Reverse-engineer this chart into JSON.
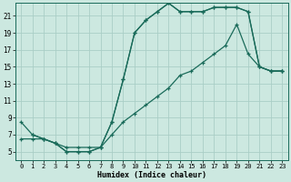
{
  "xlabel": "Humidex (Indice chaleur)",
  "bg_color": "#cce8e0",
  "grid_color": "#aacec6",
  "line_color": "#1a6b5a",
  "xlim": [
    -0.5,
    23.5
  ],
  "ylim": [
    4.0,
    22.5
  ],
  "xticks": [
    0,
    1,
    2,
    3,
    4,
    5,
    6,
    7,
    8,
    9,
    10,
    11,
    12,
    13,
    14,
    15,
    16,
    17,
    18,
    19,
    20,
    21,
    22,
    23
  ],
  "yticks": [
    5,
    7,
    9,
    11,
    13,
    15,
    17,
    19,
    21
  ],
  "line1_x": [
    0,
    1,
    2,
    3,
    4,
    5,
    6,
    7,
    8,
    9,
    10,
    11,
    12,
    13,
    14,
    15,
    16,
    17,
    18,
    19,
    20,
    21,
    22,
    23
  ],
  "line1_y": [
    8.5,
    7.0,
    6.5,
    6.0,
    5.0,
    5.0,
    5.0,
    5.5,
    8.5,
    13.5,
    19.0,
    20.5,
    21.5,
    22.5,
    21.5,
    21.5,
    21.5,
    22.0,
    22.0,
    22.0,
    21.5,
    15.0,
    14.5,
    14.5
  ],
  "line2_x": [
    0,
    1,
    2,
    3,
    4,
    5,
    6,
    7,
    8,
    9,
    10,
    11,
    12,
    13,
    14,
    15,
    16,
    17,
    18,
    19,
    20,
    21,
    22,
    23
  ],
  "line2_y": [
    6.5,
    6.5,
    6.5,
    6.0,
    5.5,
    5.5,
    5.5,
    5.5,
    7.0,
    8.5,
    9.5,
    10.5,
    11.5,
    12.5,
    14.0,
    14.5,
    15.5,
    16.5,
    17.5,
    20.0,
    16.5,
    15.0,
    14.5,
    14.5
  ],
  "line3_x": [
    1,
    2,
    3,
    4,
    5,
    6,
    7,
    8,
    9,
    10,
    11,
    12,
    13,
    14,
    15,
    16,
    17,
    18,
    19,
    20,
    21,
    22,
    23
  ],
  "line3_y": [
    7.0,
    6.5,
    6.0,
    5.0,
    5.0,
    5.0,
    5.5,
    8.5,
    13.5,
    19.0,
    20.5,
    21.5,
    22.5,
    21.5,
    21.5,
    21.5,
    22.0,
    22.0,
    22.0,
    21.5,
    15.0,
    14.5,
    14.5
  ]
}
